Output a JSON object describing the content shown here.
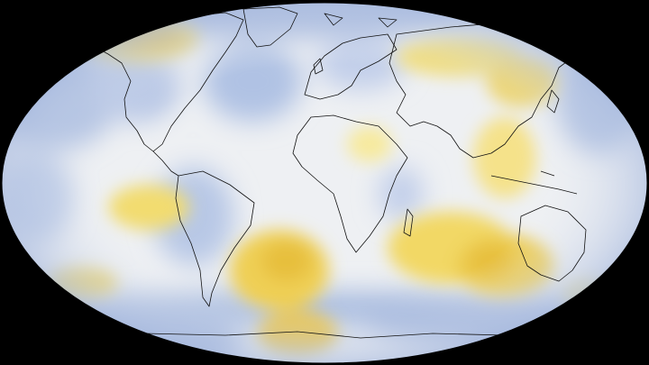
{
  "map": {
    "projection": "robinson",
    "background_color": "#000000",
    "colors": {
      "cool": "#9fb3dc",
      "cool_strong": "#8aa2d3",
      "neutral": "#eef0f3",
      "warm": "#f3e27a",
      "warm_strong": "#e7bf3c",
      "coastline": "#111111"
    },
    "anomaly_regions": [
      {
        "label": "alaska-warm",
        "kind": "warm"
      },
      {
        "label": "siberia-warm",
        "kind": "warm"
      },
      {
        "label": "china-warm",
        "kind": "warm"
      },
      {
        "label": "south-atlantic-warm",
        "kind": "warm"
      },
      {
        "label": "indian-ocean-warm",
        "kind": "warm"
      },
      {
        "label": "australia-warm",
        "kind": "warm"
      },
      {
        "label": "south-pacific-warm",
        "kind": "warm"
      },
      {
        "label": "east-pacific-warm",
        "kind": "warm"
      },
      {
        "label": "weddell-sea-warm",
        "kind": "warm"
      },
      {
        "label": "north-pacific-cool",
        "kind": "cool"
      },
      {
        "label": "north-atlantic-cool",
        "kind": "cool"
      },
      {
        "label": "arctic-cool",
        "kind": "cool"
      },
      {
        "label": "southern-ocean-cool",
        "kind": "cool"
      }
    ]
  }
}
